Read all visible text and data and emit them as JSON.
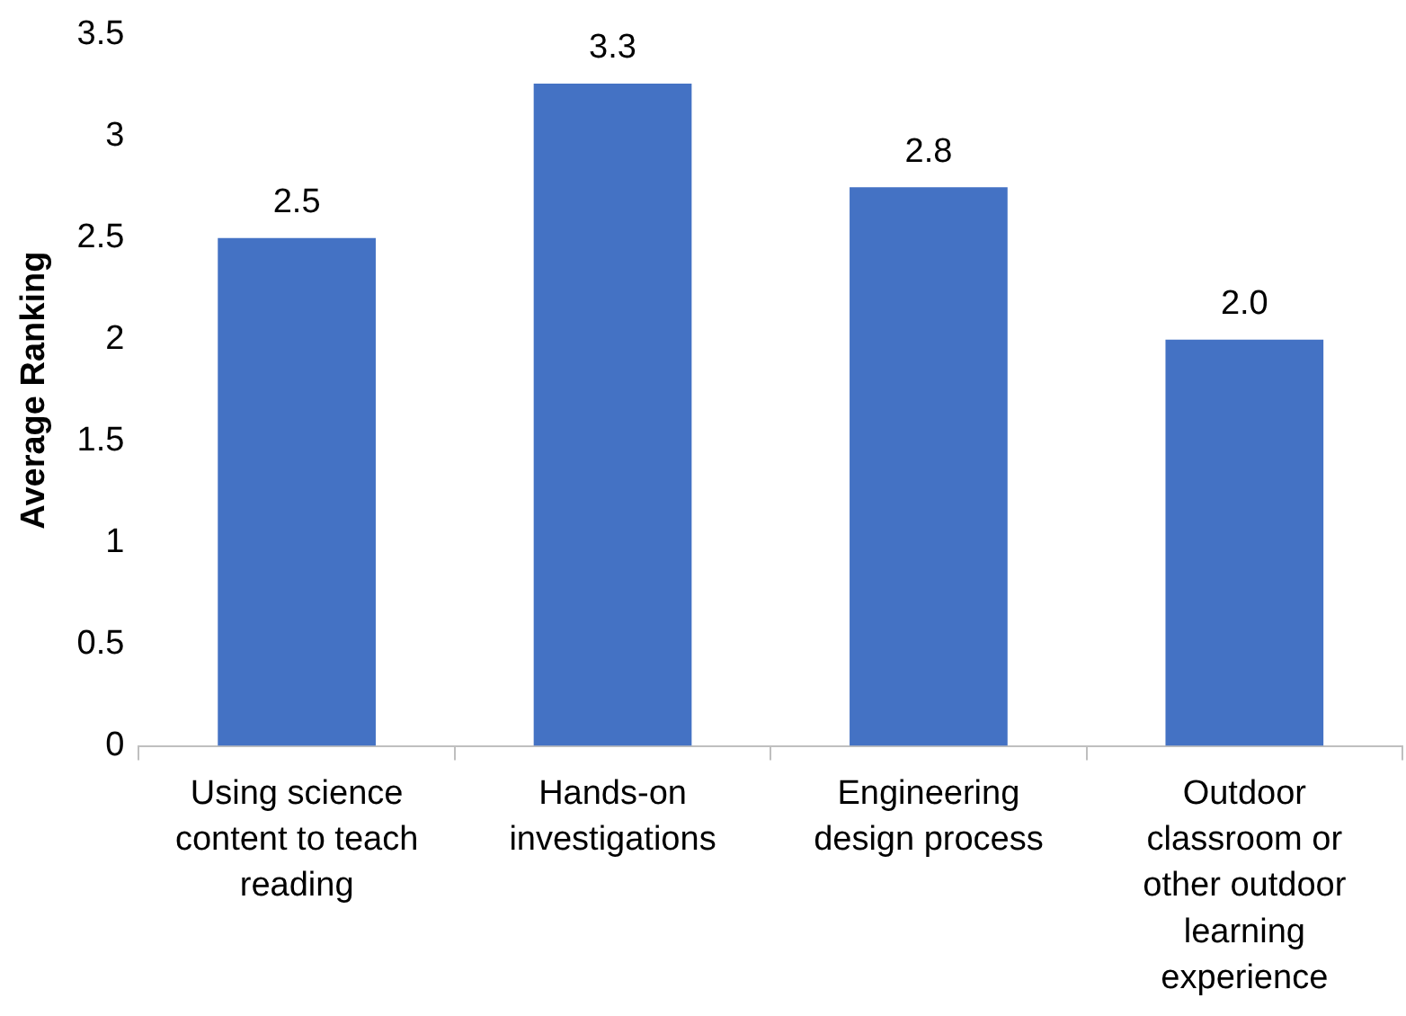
{
  "chart_data": {
    "type": "bar",
    "ylabel": "Average Ranking",
    "categories": [
      "Using science content to teach reading",
      "Hands-on investigations",
      "Engineering design process",
      "Outdoor classroom or other outdoor learning experience"
    ],
    "values": [
      2.5,
      3.26,
      2.75,
      2.0
    ],
    "value_labels": [
      "2.5",
      "3.3",
      "2.8",
      "2.0"
    ],
    "color": "#4472c4",
    "ylim": [
      0,
      3.5
    ],
    "yticks": [
      0,
      0.5,
      1,
      1.5,
      2,
      2.5,
      3,
      3.5
    ],
    "grid": false,
    "legend": false
  }
}
